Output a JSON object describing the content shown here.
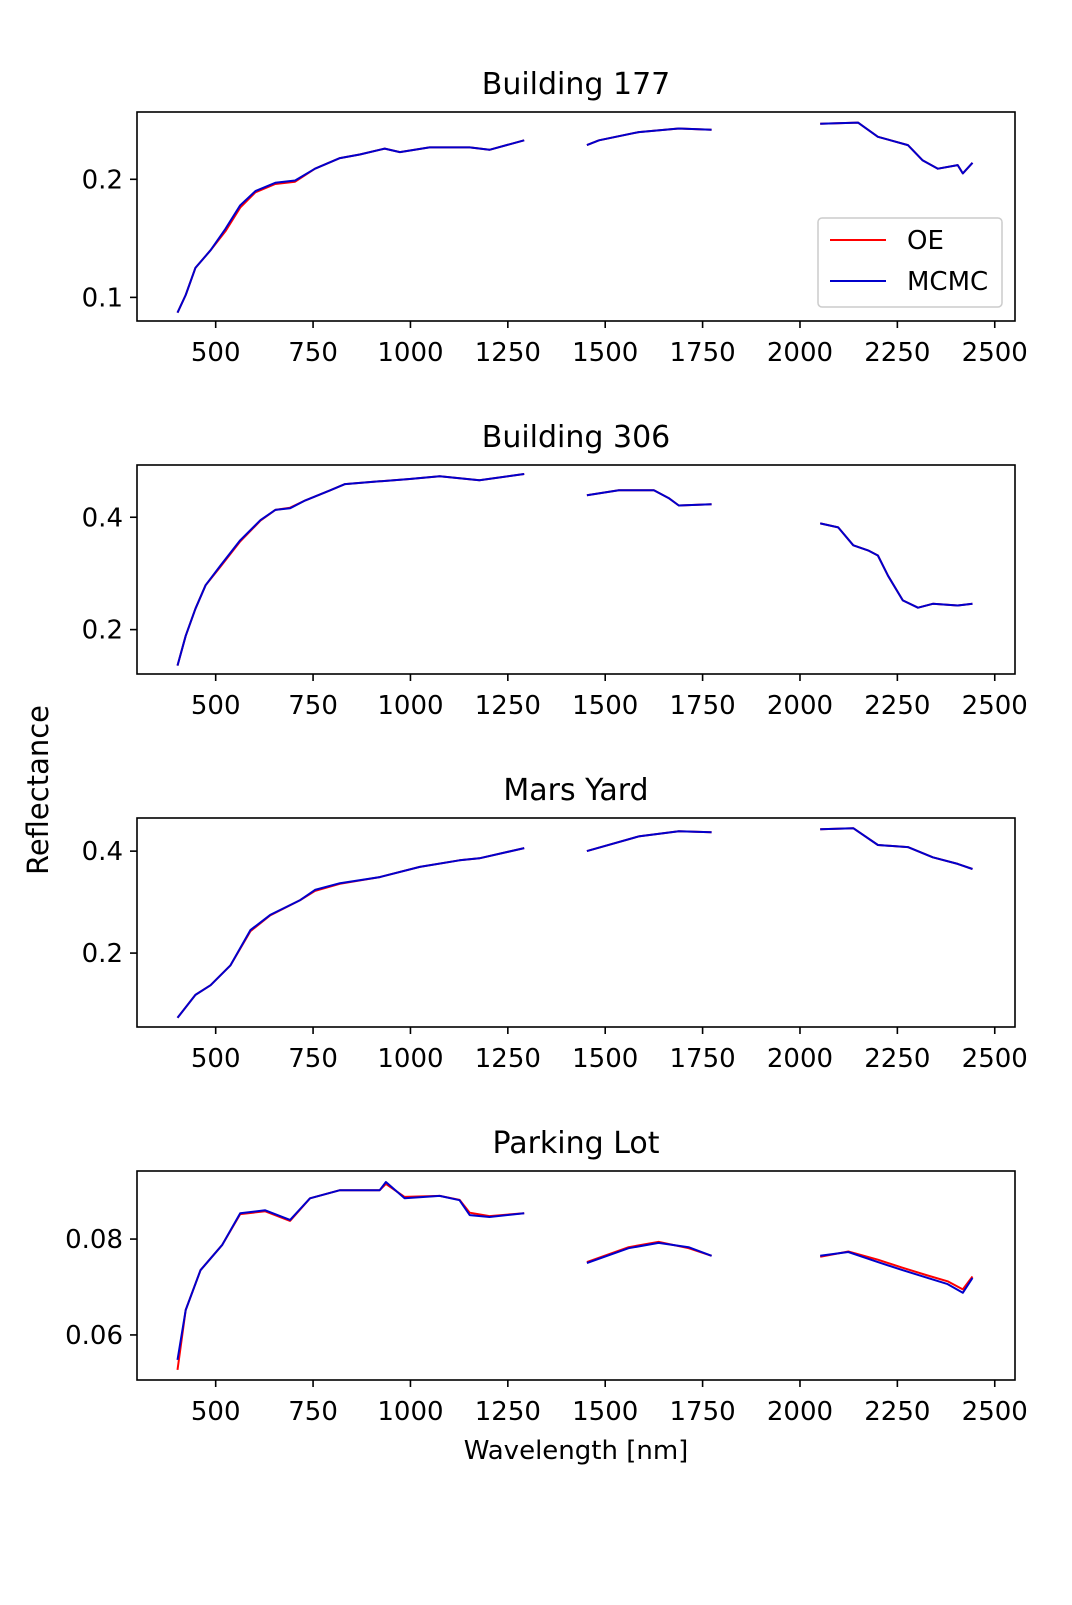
{
  "chart_data": {
    "type": "line",
    "ylabel": "Reflectance",
    "xlabel": "Wavelength [nm]",
    "xlim": [
      298,
      2552
    ],
    "xticks": [
      500,
      750,
      1000,
      1250,
      1500,
      1750,
      2000,
      2250,
      2500
    ],
    "xtick_labels": [
      "500",
      "750",
      "1000",
      "1250",
      "1500",
      "1750",
      "2000",
      "2250",
      "2500"
    ],
    "legend": {
      "placement": "lower-right of first panel",
      "entries": [
        {
          "name": "OE",
          "color": "#ff0000"
        },
        {
          "name": "MCMC",
          "color": "#0000cc"
        }
      ]
    },
    "panels": [
      {
        "title": "Building 177",
        "ylim": [
          0.08,
          0.257
        ],
        "yticks": [
          0.1,
          0.2
        ],
        "ytick_labels": [
          "0.1",
          "0.2"
        ],
        "x": [
          402,
          423,
          448,
          487,
          525,
          563,
          602,
          653,
          704,
          755,
          819,
          870,
          934,
          973,
          1049,
          1152,
          1203,
          1292,
          null,
          1453,
          1484,
          1586,
          1689,
          1773,
          null,
          2052,
          2149,
          2200,
          2277,
          2315,
          2354,
          2405,
          2418,
          2443
        ],
        "series": [
          {
            "name": "OE",
            "values": [
              0.087,
              0.102,
              0.125,
              0.14,
              0.156,
              0.176,
              0.189,
              0.196,
              0.198,
              0.209,
              0.218,
              0.221,
              0.226,
              0.223,
              0.227,
              0.227,
              0.225,
              0.233,
              null,
              0.229,
              0.233,
              0.24,
              0.243,
              0.242,
              null,
              0.247,
              0.248,
              0.236,
              0.229,
              0.216,
              0.209,
              0.212,
              0.205,
              0.214
            ]
          },
          {
            "name": "MCMC",
            "values": [
              0.087,
              0.102,
              0.125,
              0.14,
              0.158,
              0.178,
              0.19,
              0.197,
              0.199,
              0.209,
              0.218,
              0.221,
              0.226,
              0.223,
              0.227,
              0.227,
              0.225,
              0.233,
              null,
              0.229,
              0.233,
              0.24,
              0.243,
              0.242,
              null,
              0.247,
              0.248,
              0.236,
              0.229,
              0.216,
              0.209,
              0.212,
              0.205,
              0.214
            ]
          }
        ]
      },
      {
        "title": "Building 306",
        "ylim": [
          0.121,
          0.493
        ],
        "yticks": [
          0.2,
          0.4
        ],
        "ytick_labels": [
          "0.2",
          "0.4"
        ],
        "x": [
          402,
          423,
          448,
          474,
          512,
          563,
          615,
          653,
          691,
          730,
          794,
          832,
          921,
          998,
          1075,
          1177,
          1292,
          null,
          1453,
          1535,
          1625,
          1663,
          1689,
          1773,
          null,
          2052,
          2098,
          2137,
          2175,
          2200,
          2226,
          2264,
          2303,
          2341,
          2405,
          2443
        ],
        "series": [
          {
            "name": "OE",
            "values": [
              0.136,
              0.189,
              0.237,
              0.279,
              0.312,
              0.357,
              0.394,
              0.413,
              0.417,
              0.43,
              0.448,
              0.459,
              0.464,
              0.468,
              0.473,
              0.466,
              0.477,
              null,
              0.439,
              0.448,
              0.448,
              0.434,
              0.421,
              0.423,
              null,
              0.389,
              0.382,
              0.35,
              0.341,
              0.332,
              0.296,
              0.252,
              0.239,
              0.246,
              0.243,
              0.246
            ]
          },
          {
            "name": "MCMC",
            "values": [
              0.136,
              0.189,
              0.237,
              0.279,
              0.314,
              0.359,
              0.395,
              0.413,
              0.416,
              0.43,
              0.448,
              0.459,
              0.464,
              0.468,
              0.473,
              0.466,
              0.477,
              null,
              0.439,
              0.448,
              0.448,
              0.434,
              0.421,
              0.423,
              null,
              0.389,
              0.382,
              0.35,
              0.341,
              0.332,
              0.296,
              0.252,
              0.239,
              0.246,
              0.243,
              0.246
            ]
          }
        ]
      },
      {
        "title": "Mars Yard",
        "ylim": [
          0.055,
          0.465
        ],
        "yticks": [
          0.2,
          0.4
        ],
        "ytick_labels": [
          "0.2",
          "0.4"
        ],
        "x": [
          402,
          448,
          487,
          538,
          589,
          640,
          717,
          755,
          819,
          921,
          1024,
          1126,
          1177,
          1292,
          null,
          1453,
          1586,
          1689,
          1773,
          null,
          2052,
          2137,
          2200,
          2277,
          2341,
          2405,
          2443
        ],
        "series": [
          {
            "name": "OE",
            "values": [
              0.073,
              0.118,
              0.137,
              0.176,
              0.243,
              0.274,
              0.304,
              0.322,
              0.336,
              0.349,
              0.369,
              0.382,
              0.386,
              0.406,
              null,
              0.4,
              0.429,
              0.439,
              0.437,
              null,
              0.443,
              0.445,
              0.412,
              0.408,
              0.388,
              0.375,
              0.365
            ]
          },
          {
            "name": "MCMC",
            "values": [
              0.073,
              0.118,
              0.137,
              0.176,
              0.245,
              0.275,
              0.304,
              0.324,
              0.337,
              0.349,
              0.369,
              0.382,
              0.386,
              0.406,
              null,
              0.4,
              0.429,
              0.439,
              0.437,
              null,
              0.443,
              0.445,
              0.412,
              0.408,
              0.388,
              0.375,
              0.365
            ]
          }
        ]
      },
      {
        "title": "Parking Lot",
        "ylim": [
          0.0506,
          0.0942
        ],
        "yticks": [
          0.06,
          0.08
        ],
        "ytick_labels": [
          "0.06",
          "0.08"
        ],
        "x": [
          402,
          423,
          461,
          517,
          563,
          627,
          691,
          742,
          819,
          921,
          937,
          985,
          1075,
          1126,
          1152,
          1203,
          1292,
          null,
          1453,
          1560,
          1637,
          1714,
          1773,
          null,
          2052,
          2124,
          2200,
          2264,
          2328,
          2379,
          2418,
          2443
        ],
        "series": [
          {
            "name": "OE",
            "values": [
              0.0527,
              0.0652,
              0.0735,
              0.0788,
              0.0852,
              0.0858,
              0.0838,
              0.0885,
              0.0902,
              0.0902,
              0.0915,
              0.0888,
              0.089,
              0.0882,
              0.0855,
              0.0848,
              0.0854,
              null,
              0.0752,
              0.0783,
              0.0794,
              0.0781,
              0.0765,
              null,
              0.0763,
              0.0774,
              0.0757,
              0.074,
              0.0724,
              0.0712,
              0.0695,
              0.0722
            ]
          },
          {
            "name": "MCMC",
            "values": [
              0.0548,
              0.0652,
              0.0735,
              0.0788,
              0.0854,
              0.086,
              0.084,
              0.0885,
              0.0902,
              0.0902,
              0.0919,
              0.0885,
              0.089,
              0.0881,
              0.085,
              0.0846,
              0.0854,
              null,
              0.075,
              0.0781,
              0.0792,
              0.0783,
              0.0765,
              null,
              0.0765,
              0.0773,
              0.0752,
              0.0735,
              0.0719,
              0.0706,
              0.0688,
              0.0719
            ]
          }
        ]
      }
    ]
  }
}
